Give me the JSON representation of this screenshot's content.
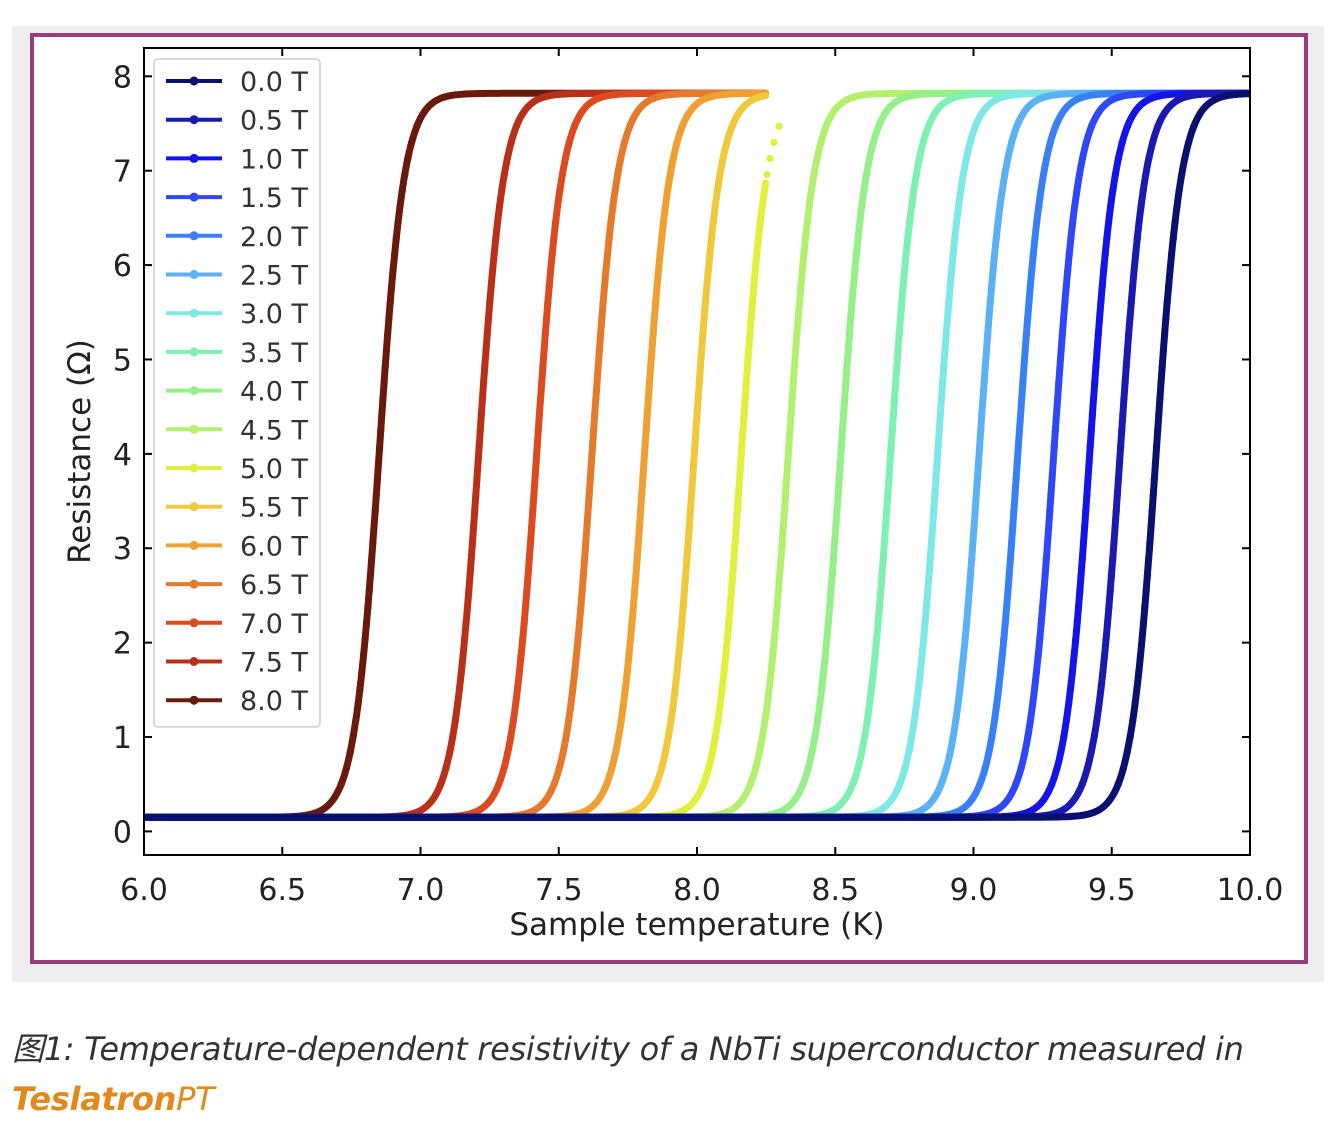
{
  "chart_data": {
    "type": "line",
    "xlabel": "Sample temperature (K)",
    "ylabel": "Resistance (Ω)",
    "xlim": [
      6.0,
      10.0
    ],
    "ylim": [
      -0.25,
      8.3
    ],
    "xticks": [
      "6.0",
      "6.5",
      "7.0",
      "7.5",
      "8.0",
      "8.5",
      "9.0",
      "9.5",
      "10.0"
    ],
    "yticks": [
      "0",
      "1",
      "2",
      "3",
      "4",
      "5",
      "6",
      "7",
      "8"
    ],
    "legend_position": "top-left",
    "grid": false,
    "r_low": 0.15,
    "r_high": 7.82,
    "series": [
      {
        "name": "0.0 T",
        "tc": 9.66,
        "width": 0.045,
        "t_start": 6.0,
        "t_end": 10.0,
        "color": "#0a1070"
      },
      {
        "name": "0.5 T",
        "tc": 9.53,
        "width": 0.045,
        "t_start": 6.0,
        "t_end": 10.0,
        "color": "#1a1ab0"
      },
      {
        "name": "1.0 T",
        "tc": 9.42,
        "width": 0.045,
        "t_start": 6.0,
        "t_end": 10.0,
        "color": "#1414e6"
      },
      {
        "name": "1.5 T",
        "tc": 9.29,
        "width": 0.045,
        "t_start": 6.0,
        "t_end": 10.0,
        "color": "#2e48f5"
      },
      {
        "name": "2.0 T",
        "tc": 9.16,
        "width": 0.045,
        "t_start": 6.0,
        "t_end": 10.0,
        "color": "#3a80f5"
      },
      {
        "name": "2.5 T",
        "tc": 9.02,
        "width": 0.045,
        "t_start": 6.0,
        "t_end": 10.0,
        "color": "#5ab2f5"
      },
      {
        "name": "3.0 T",
        "tc": 8.87,
        "width": 0.045,
        "t_start": 6.0,
        "t_end": 10.0,
        "color": "#7ee8e6"
      },
      {
        "name": "3.5 T",
        "tc": 8.7,
        "width": 0.045,
        "t_start": 6.0,
        "t_end": 10.0,
        "color": "#7ef0b2"
      },
      {
        "name": "4.0 T",
        "tc": 8.52,
        "width": 0.045,
        "t_start": 6.0,
        "t_end": 10.0,
        "color": "#96f08a"
      },
      {
        "name": "4.5 T",
        "tc": 8.33,
        "width": 0.045,
        "t_start": 6.0,
        "t_end": 10.0,
        "color": "#b4f070"
      },
      {
        "name": "5.0 T",
        "tc": 8.16,
        "width": 0.045,
        "t_start": 6.0,
        "t_end": 8.25,
        "color": "#e0f03c"
      },
      {
        "name": "5.5 T",
        "tc": 7.99,
        "width": 0.045,
        "t_start": 6.0,
        "t_end": 8.25,
        "color": "#f0c83c"
      },
      {
        "name": "6.0 T",
        "tc": 7.81,
        "width": 0.045,
        "t_start": 6.0,
        "t_end": 8.25,
        "color": "#eea032"
      },
      {
        "name": "6.5 T",
        "tc": 7.62,
        "width": 0.045,
        "t_start": 6.0,
        "t_end": 8.25,
        "color": "#e47a2c"
      },
      {
        "name": "7.0 T",
        "tc": 7.42,
        "width": 0.045,
        "t_start": 6.0,
        "t_end": 8.25,
        "color": "#dc4a20"
      },
      {
        "name": "7.5 T",
        "tc": 7.21,
        "width": 0.045,
        "t_start": 6.0,
        "t_end": 8.25,
        "color": "#b83018"
      },
      {
        "name": "8.0 T",
        "tc": 6.85,
        "width": 0.045,
        "t_start": 6.0,
        "t_end": 8.25,
        "color": "#6a1a0a"
      }
    ]
  },
  "caption": {
    "prefix": "图1",
    "text": ": Temperature-dependent resistivity of a NbTi superconductor measured in",
    "brand_bold": "Teslatron",
    "brand_rest": "PT"
  }
}
